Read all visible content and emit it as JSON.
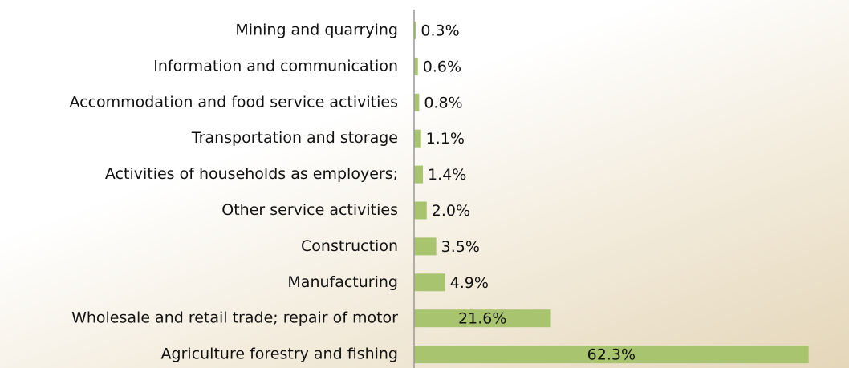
{
  "chart_data": {
    "type": "hbar",
    "categories": [
      "Mining and quarrying",
      "Information and communication",
      "Accommodation and food service activities",
      "Transportation and storage",
      "Activities of households as employers;",
      "Other service activities",
      "Construction",
      "Manufacturing",
      "Wholesale and retail trade; repair of motor",
      "Agriculture forestry and fishing"
    ],
    "values": [
      0.3,
      0.6,
      0.8,
      1.1,
      1.4,
      2.0,
      3.5,
      4.9,
      21.6,
      62.3
    ],
    "value_labels": [
      "0.3%",
      "0.6%",
      "0.8%",
      "1.1%",
      "1.4%",
      "2.0%",
      "3.5%",
      "4.9%",
      "21.6%",
      "62.3%"
    ],
    "color": "#a9c46e",
    "xlim": [
      0,
      65
    ]
  }
}
